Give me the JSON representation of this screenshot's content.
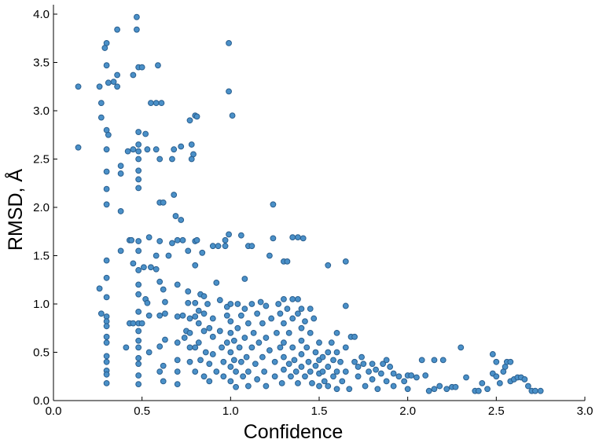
{
  "chart_data": {
    "type": "scatter",
    "title": "",
    "xlabel": "Confidence",
    "ylabel": "RMSD, Å",
    "xlim": [
      0.0,
      3.0
    ],
    "ylim": [
      0.0,
      4.0
    ],
    "x_ticks": [
      "0.0",
      "0.5",
      "1.0",
      "1.5",
      "2.0",
      "2.5",
      "3.0"
    ],
    "y_ticks": [
      "0.0",
      "0.5",
      "1.0",
      "1.5",
      "2.0",
      "2.5",
      "3.0",
      "3.5",
      "4.0"
    ],
    "grid": false,
    "legend": "none",
    "color": "#4a90c8",
    "edge_color": "#2a5f8f",
    "points": [
      [
        0.14,
        3.25
      ],
      [
        0.14,
        2.62
      ],
      [
        0.26,
        3.25
      ],
      [
        0.27,
        3.08
      ],
      [
        0.27,
        2.93
      ],
      [
        0.3,
        3.7
      ],
      [
        0.29,
        3.65
      ],
      [
        0.3,
        3.47
      ],
      [
        0.31,
        3.29
      ],
      [
        0.34,
        3.3
      ],
      [
        0.36,
        3.25
      ],
      [
        0.36,
        3.37
      ],
      [
        0.36,
        3.84
      ],
      [
        0.3,
        2.8
      ],
      [
        0.31,
        2.75
      ],
      [
        0.3,
        2.6
      ],
      [
        0.3,
        2.37
      ],
      [
        0.3,
        2.19
      ],
      [
        0.3,
        2.03
      ],
      [
        0.38,
        2.43
      ],
      [
        0.38,
        2.35
      ],
      [
        0.38,
        1.96
      ],
      [
        0.38,
        1.55
      ],
      [
        0.26,
        1.16
      ],
      [
        0.27,
        0.9
      ],
      [
        0.3,
        0.87
      ],
      [
        0.3,
        0.82
      ],
      [
        0.3,
        0.77
      ],
      [
        0.3,
        0.66
      ],
      [
        0.3,
        0.6
      ],
      [
        0.3,
        0.46
      ],
      [
        0.3,
        0.4
      ],
      [
        0.3,
        0.31
      ],
      [
        0.3,
        0.27
      ],
      [
        0.3,
        0.18
      ],
      [
        0.3,
        1.45
      ],
      [
        0.3,
        1.27
      ],
      [
        0.3,
        1.07
      ],
      [
        0.41,
        0.55
      ],
      [
        0.42,
        2.58
      ],
      [
        0.43,
        0.8
      ],
      [
        0.43,
        1.66
      ],
      [
        0.44,
        1.66
      ],
      [
        0.45,
        3.37
      ],
      [
        0.45,
        2.6
      ],
      [
        0.45,
        0.8
      ],
      [
        0.45,
        1.42
      ],
      [
        0.47,
        3.97
      ],
      [
        0.47,
        3.84
      ],
      [
        0.48,
        3.45
      ],
      [
        0.5,
        3.45
      ],
      [
        0.48,
        2.78
      ],
      [
        0.48,
        2.65
      ],
      [
        0.48,
        2.58
      ],
      [
        0.48,
        2.5
      ],
      [
        0.48,
        2.38
      ],
      [
        0.48,
        2.29
      ],
      [
        0.48,
        2.2
      ],
      [
        0.48,
        1.65
      ],
      [
        0.48,
        1.55
      ],
      [
        0.48,
        1.35
      ],
      [
        0.48,
        1.2
      ],
      [
        0.48,
        1.1
      ],
      [
        0.48,
        0.92
      ],
      [
        0.48,
        0.8
      ],
      [
        0.48,
        0.72
      ],
      [
        0.48,
        0.62
      ],
      [
        0.48,
        0.55
      ],
      [
        0.48,
        0.44
      ],
      [
        0.48,
        0.38
      ],
      [
        0.48,
        0.26
      ],
      [
        0.48,
        0.17
      ],
      [
        0.5,
        0.8
      ],
      [
        0.51,
        1.38
      ],
      [
        0.52,
        1.05
      ],
      [
        0.52,
        2.76
      ],
      [
        0.53,
        2.6
      ],
      [
        0.53,
        1.01
      ],
      [
        0.54,
        1.69
      ],
      [
        0.54,
        0.88
      ],
      [
        0.55,
        3.08
      ],
      [
        0.55,
        1.38
      ],
      [
        0.54,
        0.5
      ],
      [
        0.58,
        3.08
      ],
      [
        0.58,
        2.6
      ],
      [
        0.58,
        1.5
      ],
      [
        0.58,
        1.36
      ],
      [
        0.59,
        3.47
      ],
      [
        0.6,
        2.5
      ],
      [
        0.6,
        2.05
      ],
      [
        0.6,
        1.65
      ],
      [
        0.6,
        1.23
      ],
      [
        0.6,
        0.88
      ],
      [
        0.6,
        0.56
      ],
      [
        0.61,
        3.08
      ],
      [
        0.62,
        2.05
      ],
      [
        0.62,
        1.15
      ],
      [
        0.63,
        1.02
      ],
      [
        0.63,
        0.9
      ],
      [
        0.63,
        0.63
      ],
      [
        0.62,
        0.36
      ],
      [
        0.6,
        0.3
      ],
      [
        0.62,
        0.2
      ],
      [
        0.65,
        1.5
      ],
      [
        0.67,
        1.63
      ],
      [
        0.67,
        2.5
      ],
      [
        0.68,
        2.6
      ],
      [
        0.68,
        2.13
      ],
      [
        0.69,
        1.91
      ],
      [
        0.7,
        1.66
      ],
      [
        0.7,
        1.2
      ],
      [
        0.7,
        0.87
      ],
      [
        0.7,
        0.6
      ],
      [
        0.7,
        0.42
      ],
      [
        0.7,
        0.3
      ],
      [
        0.7,
        0.17
      ],
      [
        0.72,
        2.63
      ],
      [
        0.72,
        1.87
      ],
      [
        0.73,
        1.66
      ],
      [
        0.73,
        0.88
      ],
      [
        0.74,
        0.65
      ],
      [
        0.75,
        0.72
      ],
      [
        0.76,
        1.55
      ],
      [
        0.76,
        1.13
      ],
      [
        0.76,
        1.01
      ],
      [
        0.77,
        2.9
      ],
      [
        0.77,
        0.85
      ],
      [
        0.77,
        0.7
      ],
      [
        0.77,
        0.55
      ],
      [
        0.77,
        0.4
      ],
      [
        0.78,
        2.65
      ],
      [
        0.78,
        2.5
      ],
      [
        0.79,
        2.55
      ],
      [
        0.8,
        2.95
      ],
      [
        0.8,
        1.65
      ],
      [
        0.8,
        1.4
      ],
      [
        0.8,
        1.01
      ],
      [
        0.8,
        0.87
      ],
      [
        0.8,
        0.55
      ],
      [
        0.8,
        0.3
      ],
      [
        0.81,
        2.94
      ],
      [
        0.81,
        1.66
      ],
      [
        0.82,
        0.93
      ],
      [
        0.82,
        0.8
      ],
      [
        0.82,
        0.6
      ],
      [
        0.83,
        1.1
      ],
      [
        0.83,
        0.42
      ],
      [
        0.84,
        1.53
      ],
      [
        0.85,
        1.08
      ],
      [
        0.85,
        0.9
      ],
      [
        0.85,
        0.72
      ],
      [
        0.85,
        0.25
      ],
      [
        0.86,
        0.5
      ],
      [
        0.87,
        1.0
      ],
      [
        0.88,
        0.75
      ],
      [
        0.88,
        0.38
      ],
      [
        0.88,
        0.2
      ],
      [
        0.9,
        1.6
      ],
      [
        0.9,
        0.85
      ],
      [
        0.9,
        0.66
      ],
      [
        0.9,
        0.48
      ],
      [
        0.92,
        1.22
      ],
      [
        0.92,
        0.3
      ],
      [
        0.93,
        1.6
      ],
      [
        0.94,
        1.04
      ],
      [
        0.94,
        0.72
      ],
      [
        0.95,
        0.55
      ],
      [
        0.96,
        0.4
      ],
      [
        0.96,
        0.25
      ],
      [
        0.97,
        1.66
      ],
      [
        0.97,
        1.6
      ],
      [
        0.98,
        0.97
      ],
      [
        0.98,
        0.88
      ],
      [
        0.98,
        0.6
      ],
      [
        0.99,
        3.7
      ],
      [
        0.99,
        3.2
      ],
      [
        0.99,
        1.72
      ],
      [
        1.0,
        1.0
      ],
      [
        1.0,
        0.82
      ],
      [
        1.0,
        0.7
      ],
      [
        1.0,
        0.5
      ],
      [
        1.0,
        0.35
      ],
      [
        1.0,
        0.2
      ],
      [
        1.01,
        2.95
      ],
      [
        1.02,
        0.62
      ],
      [
        1.02,
        0.42
      ],
      [
        1.03,
        0.3
      ],
      [
        1.03,
        0.14
      ],
      [
        1.04,
        1.0
      ],
      [
        1.04,
        0.75
      ],
      [
        1.05,
        0.55
      ],
      [
        1.06,
        1.71
      ],
      [
        1.06,
        0.88
      ],
      [
        1.06,
        0.4
      ],
      [
        1.07,
        0.25
      ],
      [
        1.08,
        1.26
      ],
      [
        1.08,
        0.95
      ],
      [
        1.08,
        0.65
      ],
      [
        1.09,
        0.45
      ],
      [
        1.1,
        1.6
      ],
      [
        1.1,
        0.8
      ],
      [
        1.1,
        0.3
      ],
      [
        1.1,
        0.15
      ],
      [
        1.12,
        1.6
      ],
      [
        1.12,
        1.0
      ],
      [
        1.12,
        0.55
      ],
      [
        1.13,
        0.7
      ],
      [
        1.14,
        0.38
      ],
      [
        1.15,
        0.9
      ],
      [
        1.15,
        0.22
      ],
      [
        1.16,
        0.6
      ],
      [
        1.17,
        1.02
      ],
      [
        1.18,
        0.8
      ],
      [
        1.18,
        0.45
      ],
      [
        1.19,
        0.3
      ],
      [
        1.2,
        0.98
      ],
      [
        1.2,
        0.65
      ],
      [
        1.2,
        0.15
      ],
      [
        1.22,
        1.5
      ],
      [
        1.22,
        0.52
      ],
      [
        1.23,
        0.85
      ],
      [
        1.24,
        2.03
      ],
      [
        1.24,
        1.68
      ],
      [
        1.25,
        0.4
      ],
      [
        1.25,
        0.25
      ],
      [
        1.26,
        0.7
      ],
      [
        1.27,
        1.0
      ],
      [
        1.28,
        0.9
      ],
      [
        1.28,
        0.55
      ],
      [
        1.29,
        0.18
      ],
      [
        1.3,
        1.44
      ],
      [
        1.3,
        1.05
      ],
      [
        1.3,
        0.8
      ],
      [
        1.3,
        0.6
      ],
      [
        1.3,
        0.45
      ],
      [
        1.3,
        0.32
      ],
      [
        1.32,
        1.44
      ],
      [
        1.32,
        0.95
      ],
      [
        1.33,
        0.7
      ],
      [
        1.33,
        0.38
      ],
      [
        1.34,
        0.25
      ],
      [
        1.35,
        1.69
      ],
      [
        1.35,
        1.05
      ],
      [
        1.35,
        0.85
      ],
      [
        1.35,
        0.55
      ],
      [
        1.36,
        0.42
      ],
      [
        1.37,
        0.3
      ],
      [
        1.38,
        1.69
      ],
      [
        1.38,
        1.05
      ],
      [
        1.38,
        0.9
      ],
      [
        1.38,
        0.18
      ],
      [
        1.4,
        0.95
      ],
      [
        1.4,
        0.75
      ],
      [
        1.4,
        0.62
      ],
      [
        1.4,
        0.48
      ],
      [
        1.4,
        0.35
      ],
      [
        1.41,
        1.68
      ],
      [
        1.42,
        0.82
      ],
      [
        1.42,
        0.25
      ],
      [
        1.43,
        0.55
      ],
      [
        1.44,
        0.4
      ],
      [
        1.45,
        0.95
      ],
      [
        1.45,
        0.7
      ],
      [
        1.45,
        0.3
      ],
      [
        1.46,
        0.18
      ],
      [
        1.47,
        0.85
      ],
      [
        1.48,
        0.5
      ],
      [
        1.48,
        0.36
      ],
      [
        1.5,
        0.6
      ],
      [
        1.5,
        0.42
      ],
      [
        1.5,
        0.28
      ],
      [
        1.5,
        0.15
      ],
      [
        1.52,
        0.45
      ],
      [
        1.52,
        0.3
      ],
      [
        1.53,
        0.2
      ],
      [
        1.55,
        1.4
      ],
      [
        1.55,
        0.5
      ],
      [
        1.55,
        0.35
      ],
      [
        1.55,
        0.15
      ],
      [
        1.57,
        0.6
      ],
      [
        1.58,
        0.42
      ],
      [
        1.58,
        0.25
      ],
      [
        1.6,
        0.7
      ],
      [
        1.6,
        0.5
      ],
      [
        1.6,
        0.3
      ],
      [
        1.6,
        0.12
      ],
      [
        1.62,
        0.4
      ],
      [
        1.63,
        0.2
      ],
      [
        1.65,
        1.44
      ],
      [
        1.65,
        0.98
      ],
      [
        1.65,
        0.55
      ],
      [
        1.65,
        0.3
      ],
      [
        1.67,
        0.12
      ],
      [
        1.68,
        0.66
      ],
      [
        1.7,
        0.66
      ],
      [
        1.7,
        0.4
      ],
      [
        1.72,
        0.35
      ],
      [
        1.72,
        0.25
      ],
      [
        1.74,
        0.45
      ],
      [
        1.75,
        0.38
      ],
      [
        1.76,
        0.15
      ],
      [
        1.78,
        0.3
      ],
      [
        1.8,
        0.38
      ],
      [
        1.8,
        0.22
      ],
      [
        1.82,
        0.32
      ],
      [
        1.83,
        0.12
      ],
      [
        1.85,
        0.28
      ],
      [
        1.86,
        0.38
      ],
      [
        1.88,
        0.42
      ],
      [
        1.88,
        0.2
      ],
      [
        1.9,
        0.35
      ],
      [
        1.92,
        0.28
      ],
      [
        1.92,
        0.15
      ],
      [
        1.95,
        0.25
      ],
      [
        1.98,
        0.2
      ],
      [
        2.0,
        0.26
      ],
      [
        2.0,
        0.12
      ],
      [
        2.02,
        0.26
      ],
      [
        2.05,
        0.24
      ],
      [
        2.08,
        0.42
      ],
      [
        2.1,
        0.26
      ],
      [
        2.12,
        0.1
      ],
      [
        2.15,
        0.42
      ],
      [
        2.15,
        0.12
      ],
      [
        2.18,
        0.15
      ],
      [
        2.2,
        0.42
      ],
      [
        2.22,
        0.12
      ],
      [
        2.25,
        0.14
      ],
      [
        2.27,
        0.14
      ],
      [
        2.3,
        0.55
      ],
      [
        2.33,
        0.24
      ],
      [
        2.38,
        0.1
      ],
      [
        2.4,
        0.1
      ],
      [
        2.42,
        0.18
      ],
      [
        2.45,
        0.12
      ],
      [
        2.48,
        0.48
      ],
      [
        2.48,
        0.28
      ],
      [
        2.5,
        0.4
      ],
      [
        2.5,
        0.25
      ],
      [
        2.52,
        0.18
      ],
      [
        2.54,
        0.3
      ],
      [
        2.55,
        0.35
      ],
      [
        2.56,
        0.4
      ],
      [
        2.58,
        0.4
      ],
      [
        2.58,
        0.2
      ],
      [
        2.6,
        0.22
      ],
      [
        2.62,
        0.24
      ],
      [
        2.64,
        0.24
      ],
      [
        2.66,
        0.22
      ],
      [
        2.68,
        0.15
      ],
      [
        2.7,
        0.1
      ],
      [
        2.72,
        0.1
      ],
      [
        2.75,
        0.1
      ]
    ]
  }
}
